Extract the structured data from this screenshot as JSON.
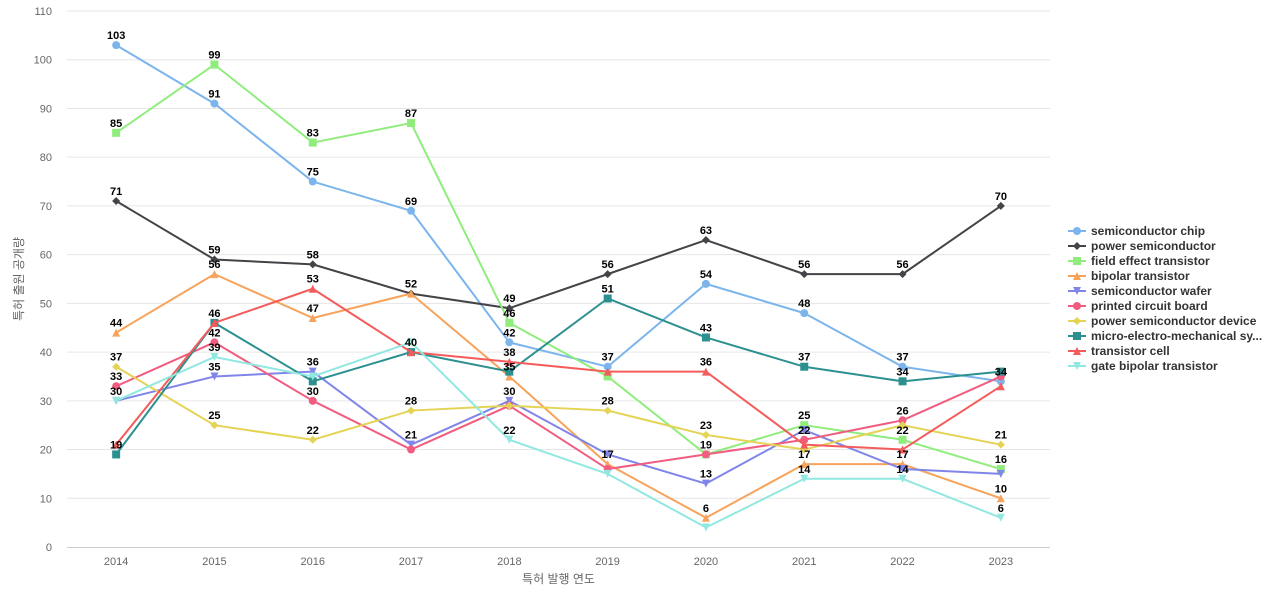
{
  "chart_data": {
    "type": "line",
    "title": "",
    "xlabel": "특허 발행 연도",
    "ylabel": "특허 출원 공개량",
    "ylim": [
      0,
      110
    ],
    "yticks": [
      0,
      10,
      20,
      30,
      40,
      50,
      60,
      70,
      80,
      90,
      100,
      110
    ],
    "grid": true,
    "legend_position": "right",
    "categories": [
      "2014",
      "2015",
      "2016",
      "2017",
      "2018",
      "2019",
      "2020",
      "2021",
      "2022",
      "2023"
    ],
    "series": [
      {
        "name": "semiconductor chip",
        "legend_label": "semiconductor chip",
        "color": "#7cb5ec",
        "marker": "circle",
        "values": [
          103,
          91,
          75,
          69,
          42,
          37,
          54,
          48,
          37,
          34
        ]
      },
      {
        "name": "power semiconductor",
        "legend_label": "power semiconductor",
        "color": "#434348",
        "marker": "diamond",
        "values": [
          71,
          59,
          58,
          52,
          49,
          56,
          63,
          56,
          56,
          70
        ]
      },
      {
        "name": "field effect transistor",
        "legend_label": "field effect transistor",
        "color": "#90ed7d",
        "marker": "square",
        "values": [
          85,
          99,
          83,
          87,
          46,
          35,
          19,
          25,
          22,
          16
        ]
      },
      {
        "name": "bipolar transistor",
        "legend_label": "bipolar transistor",
        "color": "#f7a35c",
        "marker": "triangle",
        "values": [
          44,
          56,
          47,
          52,
          35,
          17,
          6,
          17,
          17,
          10
        ]
      },
      {
        "name": "semiconductor wafer",
        "legend_label": "semiconductor wafer",
        "color": "#8085e9",
        "marker": "triangle-down",
        "values": [
          30,
          35,
          36,
          21,
          30,
          19,
          13,
          24,
          16,
          15
        ]
      },
      {
        "name": "printed circuit board",
        "legend_label": "printed circuit board",
        "color": "#f15c80",
        "marker": "circle",
        "values": [
          33,
          42,
          30,
          20,
          29,
          16,
          19,
          22,
          26,
          35
        ]
      },
      {
        "name": "power semiconductor device",
        "legend_label": "power semiconductor device",
        "color": "#e4d354",
        "marker": "diamond",
        "values": [
          37,
          25,
          22,
          28,
          29,
          28,
          23,
          20,
          25,
          21
        ]
      },
      {
        "name": "micro-electro-mechanical system",
        "legend_label": "micro-electro-mechanical sy...",
        "color": "#2b908f",
        "marker": "square",
        "values": [
          19,
          46,
          34,
          40,
          36,
          51,
          43,
          37,
          34,
          36
        ]
      },
      {
        "name": "transistor cell",
        "legend_label": "transistor cell",
        "color": "#f45b5b",
        "marker": "triangle",
        "values": [
          21,
          46,
          53,
          40,
          38,
          36,
          36,
          21,
          20,
          33
        ]
      },
      {
        "name": "gate bipolar transistor",
        "legend_label": "gate bipolar transistor",
        "color": "#91e8e1",
        "marker": "triangle-down",
        "values": [
          30,
          39,
          35,
          42,
          22,
          15,
          4,
          14,
          14,
          6
        ]
      }
    ],
    "data_labels": [
      {
        "category": "2014",
        "value": 103,
        "text": "103"
      },
      {
        "category": "2014",
        "value": 85,
        "text": "85"
      },
      {
        "category": "2014",
        "value": 71,
        "text": "71"
      },
      {
        "category": "2014",
        "value": 44,
        "text": "44"
      },
      {
        "category": "2014",
        "value": 37,
        "text": "37"
      },
      {
        "category": "2014",
        "value": 33,
        "text": "33"
      },
      {
        "category": "2014",
        "value": 30,
        "text": "30"
      },
      {
        "category": "2014",
        "value": 19,
        "text": "19"
      },
      {
        "category": "2015",
        "value": 99,
        "text": "99"
      },
      {
        "category": "2015",
        "value": 91,
        "text": "91"
      },
      {
        "category": "2015",
        "value": 59,
        "text": "59"
      },
      {
        "category": "2015",
        "value": 56,
        "text": "56"
      },
      {
        "category": "2015",
        "value": 46,
        "text": "46"
      },
      {
        "category": "2015",
        "value": 42,
        "text": "42"
      },
      {
        "category": "2015",
        "value": 39,
        "text": "39"
      },
      {
        "category": "2015",
        "value": 35,
        "text": "35"
      },
      {
        "category": "2015",
        "value": 25,
        "text": "25"
      },
      {
        "category": "2016",
        "value": 83,
        "text": "83"
      },
      {
        "category": "2016",
        "value": 75,
        "text": "75"
      },
      {
        "category": "2016",
        "value": 58,
        "text": "58"
      },
      {
        "category": "2016",
        "value": 53,
        "text": "53"
      },
      {
        "category": "2016",
        "value": 47,
        "text": "47"
      },
      {
        "category": "2016",
        "value": 36,
        "text": "36"
      },
      {
        "category": "2016",
        "value": 30,
        "text": "30"
      },
      {
        "category": "2016",
        "value": 22,
        "text": "22"
      },
      {
        "category": "2017",
        "value": 87,
        "text": "87"
      },
      {
        "category": "2017",
        "value": 69,
        "text": "69"
      },
      {
        "category": "2017",
        "value": 52,
        "text": "52"
      },
      {
        "category": "2017",
        "value": 40,
        "text": "40"
      },
      {
        "category": "2017",
        "value": 28,
        "text": "28"
      },
      {
        "category": "2017",
        "value": 21,
        "text": "21"
      },
      {
        "category": "2018",
        "value": 49,
        "text": "49"
      },
      {
        "category": "2018",
        "value": 46,
        "text": "46"
      },
      {
        "category": "2018",
        "value": 42,
        "text": "42"
      },
      {
        "category": "2018",
        "value": 38,
        "text": "38"
      },
      {
        "category": "2018",
        "value": 35,
        "text": "35"
      },
      {
        "category": "2018",
        "value": 30,
        "text": "30"
      },
      {
        "category": "2018",
        "value": 22,
        "text": "22"
      },
      {
        "category": "2019",
        "value": 56,
        "text": "56"
      },
      {
        "category": "2019",
        "value": 51,
        "text": "51"
      },
      {
        "category": "2019",
        "value": 37,
        "text": "37"
      },
      {
        "category": "2019",
        "value": 28,
        "text": "28"
      },
      {
        "category": "2019",
        "value": 17,
        "text": "17"
      },
      {
        "category": "2020",
        "value": 63,
        "text": "63"
      },
      {
        "category": "2020",
        "value": 54,
        "text": "54"
      },
      {
        "category": "2020",
        "value": 43,
        "text": "43"
      },
      {
        "category": "2020",
        "value": 36,
        "text": "36"
      },
      {
        "category": "2020",
        "value": 23,
        "text": "23"
      },
      {
        "category": "2020",
        "value": 19,
        "text": "19"
      },
      {
        "category": "2020",
        "value": 13,
        "text": "13"
      },
      {
        "category": "2020",
        "value": 6,
        "text": "6"
      },
      {
        "category": "2021",
        "value": 56,
        "text": "56"
      },
      {
        "category": "2021",
        "value": 48,
        "text": "48"
      },
      {
        "category": "2021",
        "value": 37,
        "text": "37"
      },
      {
        "category": "2021",
        "value": 25,
        "text": "25"
      },
      {
        "category": "2021",
        "value": 22,
        "text": "22"
      },
      {
        "category": "2021",
        "value": 17,
        "text": "17"
      },
      {
        "category": "2021",
        "value": 14,
        "text": "14"
      },
      {
        "category": "2022",
        "value": 56,
        "text": "56"
      },
      {
        "category": "2022",
        "value": 37,
        "text": "37"
      },
      {
        "category": "2022",
        "value": 34,
        "text": "34"
      },
      {
        "category": "2022",
        "value": 26,
        "text": "26"
      },
      {
        "category": "2022",
        "value": 22,
        "text": "22"
      },
      {
        "category": "2022",
        "value": 17,
        "text": "17"
      },
      {
        "category": "2022",
        "value": 14,
        "text": "14"
      },
      {
        "category": "2023",
        "value": 70,
        "text": "70"
      },
      {
        "category": "2023",
        "value": 34,
        "text": "34"
      },
      {
        "category": "2023",
        "value": 21,
        "text": "21"
      },
      {
        "category": "2023",
        "value": 16,
        "text": "16"
      },
      {
        "category": "2023",
        "value": 10,
        "text": "10"
      },
      {
        "category": "2023",
        "value": 6,
        "text": "6"
      }
    ]
  }
}
